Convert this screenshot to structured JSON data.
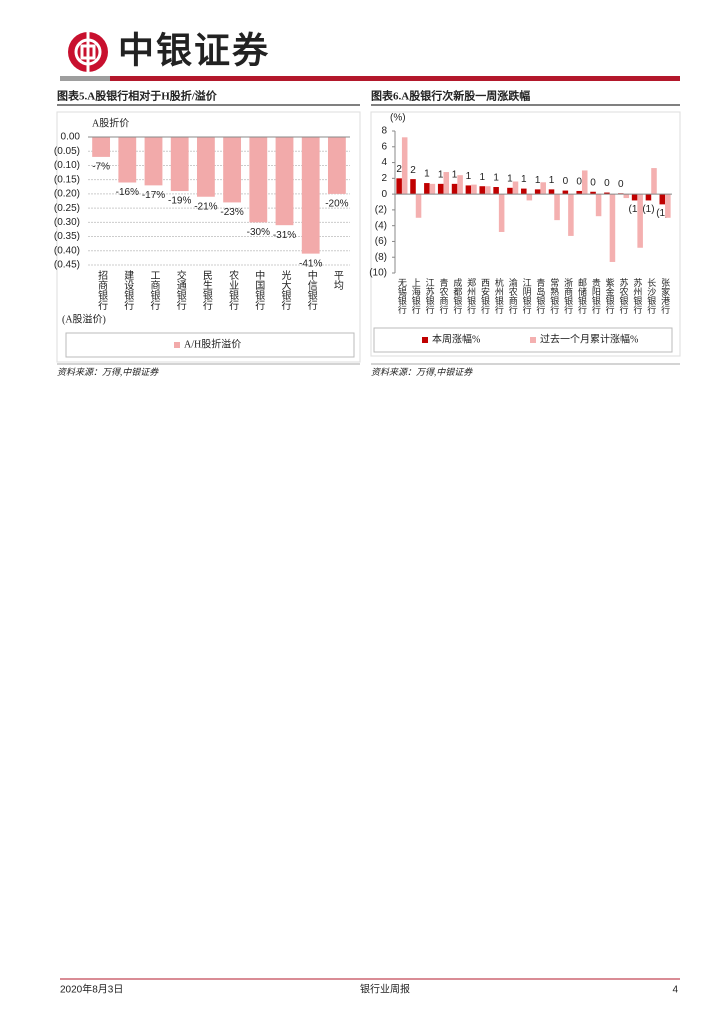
{
  "header": {
    "brand": "中银证券"
  },
  "chart_data": [
    {
      "type": "bar",
      "title": "图表5.A股银行相对于H股折/溢价",
      "y_label_top": "A股折价",
      "y_label_bottom": "(A股溢价)",
      "categories": [
        "招商银行",
        "建设银行",
        "工商银行",
        "交通银行",
        "民生银行",
        "农业银行",
        "中国银行",
        "光大银行",
        "中信银行",
        "平均"
      ],
      "series": [
        {
          "name": "A/H股折溢价",
          "color": "#f2aaaa",
          "values": [
            -0.07,
            -0.16,
            -0.17,
            -0.19,
            -0.21,
            -0.23,
            -0.3,
            -0.31,
            -0.41,
            -0.2
          ],
          "value_labels": [
            "-7%",
            "-16%",
            "-17%",
            "-19%",
            "-21%",
            "-23%",
            "-30%",
            "-31%",
            "-41%",
            "-20%"
          ]
        }
      ],
      "ylim": [
        -0.45,
        0
      ],
      "yticks": [
        {
          "value": 0,
          "label": "0.00"
        },
        {
          "value": -0.05,
          "label": "(0.05)"
        },
        {
          "value": -0.1,
          "label": "(0.10)"
        },
        {
          "value": -0.15,
          "label": "(0.15)"
        },
        {
          "value": -0.2,
          "label": "(0.20)"
        },
        {
          "value": -0.25,
          "label": "(0.25)"
        },
        {
          "value": -0.3,
          "label": "(0.30)"
        },
        {
          "value": -0.35,
          "label": "(0.35)"
        },
        {
          "value": -0.4,
          "label": "(0.40)"
        },
        {
          "value": -0.45,
          "label": "(0.45)"
        }
      ],
      "grid": true,
      "negative_tick_color": "#e00000",
      "source": "资料来源：万得,中银证券"
    },
    {
      "type": "bar",
      "title": "图表6.A股银行次新股一周涨跌幅",
      "y_unit": "(%)",
      "categories": [
        "无锡银行",
        "上海银行",
        "江苏银行",
        "青农商行",
        "成都银行",
        "郑州银行",
        "西安银行",
        "杭州银行",
        "渝农商行",
        "江阴银行",
        "青岛银行",
        "常熟银行",
        "浙商银行",
        "邮储银行",
        "贵阳银行",
        "紫金银行",
        "苏农银行",
        "苏州银行",
        "长沙银行",
        "张家港行"
      ],
      "series": [
        {
          "name": "本周涨幅%",
          "color": "#c00000",
          "values": [
            2.0,
            1.9,
            1.4,
            1.3,
            1.3,
            1.1,
            1.0,
            0.9,
            0.8,
            0.7,
            0.6,
            0.6,
            0.45,
            0.4,
            0.3,
            0.2,
            0.1,
            -0.8,
            -0.8,
            -1.3
          ],
          "value_labels": [
            "2",
            "2",
            "1",
            "1",
            "1",
            "1",
            "1",
            "1",
            "1",
            "1",
            "1",
            "1",
            "0",
            "0",
            "0",
            "0",
            "0",
            "(1)",
            "(1)",
            "(1)"
          ]
        },
        {
          "name": "过去一个月累计涨幅%",
          "color": "#f4b0b0",
          "values": [
            7.2,
            -3.0,
            1.3,
            2.8,
            2.4,
            1.2,
            1.0,
            -4.8,
            1.6,
            -0.8,
            1.5,
            -3.3,
            -5.3,
            3.0,
            -2.8,
            -8.6,
            -0.5,
            -6.8,
            3.3,
            -3.0
          ]
        }
      ],
      "ylim": [
        -10,
        8
      ],
      "yticks": [
        8,
        6,
        4,
        2,
        0,
        {
          "value": -2,
          "label": "(2)"
        },
        {
          "value": -4,
          "label": "(4)"
        },
        {
          "value": -6,
          "label": "(6)"
        },
        {
          "value": -8,
          "label": "(8)"
        },
        {
          "value": -10,
          "label": "(10)"
        }
      ],
      "grid": false,
      "negative_tick_color": "#e00000",
      "source": "资料来源：万得,中银证券"
    }
  ],
  "footer": {
    "date": "2020年8月3日",
    "report": "银行业周报",
    "page": "4"
  }
}
